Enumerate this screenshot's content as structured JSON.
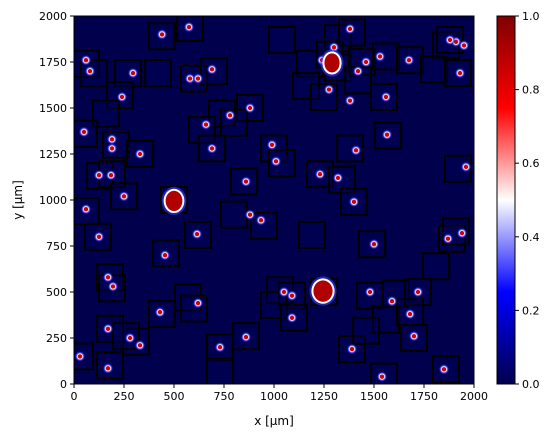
{
  "chart_data": {
    "type": "heatmap",
    "title": "",
    "xlabel": "x [µm]",
    "ylabel": "y [µm]",
    "xlim": [
      0,
      2000
    ],
    "ylim": [
      0,
      2000
    ],
    "x_ticks": [
      0,
      250,
      500,
      750,
      1000,
      1250,
      1500,
      1750,
      2000
    ],
    "y_ticks": [
      0,
      250,
      500,
      750,
      1000,
      1250,
      1500,
      1750,
      2000
    ],
    "background_color": "#00004d",
    "colorbar": {
      "label": "",
      "range": [
        0.0,
        1.0
      ],
      "ticks": [
        "0.0",
        "0.2",
        "0.4",
        "0.6",
        "0.8",
        "1.0"
      ],
      "colormap": "seismic",
      "stops": [
        "#00004d",
        "#0000ff",
        "#ffffff",
        "#ff0000",
        "#800000"
      ]
    },
    "large_blobs": [
      {
        "x": 500,
        "y": 995,
        "rx": 42,
        "ry": 55
      },
      {
        "x": 1245,
        "y": 505,
        "rx": 48,
        "ry": 58
      },
      {
        "x": 1290,
        "y": 1745,
        "rx": 38,
        "ry": 52
      }
    ],
    "particles": [
      [
        440,
        1900
      ],
      [
        575,
        1940
      ],
      [
        1380,
        1930
      ],
      [
        1910,
        1860
      ],
      [
        1950,
        1840
      ],
      [
        60,
        1760
      ],
      [
        80,
        1700
      ],
      [
        240,
        1560
      ],
      [
        295,
        1690
      ],
      [
        580,
        1660
      ],
      [
        620,
        1660
      ],
      [
        690,
        1710
      ],
      [
        1240,
        1760
      ],
      [
        1300,
        1830
      ],
      [
        1460,
        1750
      ],
      [
        1530,
        1780
      ],
      [
        1675,
        1760
      ],
      [
        1880,
        1870
      ],
      [
        1930,
        1690
      ],
      [
        1420,
        1700
      ],
      [
        1560,
        1560
      ],
      [
        1380,
        1540
      ],
      [
        1275,
        1600
      ],
      [
        660,
        1410
      ],
      [
        780,
        1460
      ],
      [
        880,
        1500
      ],
      [
        50,
        1370
      ],
      [
        190,
        1330
      ],
      [
        190,
        1280
      ],
      [
        330,
        1250
      ],
      [
        690,
        1280
      ],
      [
        990,
        1300
      ],
      [
        1010,
        1210
      ],
      [
        1410,
        1270
      ],
      [
        1565,
        1355
      ],
      [
        1960,
        1180
      ],
      [
        125,
        1135
      ],
      [
        185,
        1135
      ],
      [
        860,
        1100
      ],
      [
        1230,
        1140
      ],
      [
        1320,
        1120
      ],
      [
        1400,
        990
      ],
      [
        250,
        1020
      ],
      [
        60,
        950
      ],
      [
        880,
        920
      ],
      [
        935,
        890
      ],
      [
        1870,
        790
      ],
      [
        1940,
        820
      ],
      [
        125,
        800
      ],
      [
        615,
        815
      ],
      [
        1500,
        760
      ],
      [
        455,
        700
      ],
      [
        170,
        580
      ],
      [
        195,
        530
      ],
      [
        1050,
        500
      ],
      [
        1090,
        480
      ],
      [
        1480,
        500
      ],
      [
        1720,
        500
      ],
      [
        620,
        440
      ],
      [
        1590,
        450
      ],
      [
        430,
        390
      ],
      [
        1090,
        360
      ],
      [
        1680,
        380
      ],
      [
        170,
        300
      ],
      [
        280,
        250
      ],
      [
        330,
        210
      ],
      [
        730,
        200
      ],
      [
        860,
        255
      ],
      [
        1390,
        190
      ],
      [
        1700,
        260
      ],
      [
        30,
        150
      ],
      [
        170,
        85
      ],
      [
        1850,
        80
      ],
      [
        1540,
        40
      ]
    ],
    "boxes": [
      [
        440,
        1890
      ],
      [
        580,
        1935
      ],
      [
        1040,
        1870
      ],
      [
        1320,
        1880
      ],
      [
        1390,
        1910
      ],
      [
        1860,
        1840
      ],
      [
        1880,
        1870
      ],
      [
        60,
        1740
      ],
      [
        100,
        1690
      ],
      [
        270,
        1690
      ],
      [
        420,
        1690
      ],
      [
        600,
        1660
      ],
      [
        700,
        1700
      ],
      [
        1180,
        1740
      ],
      [
        1280,
        1790
      ],
      [
        1320,
        1720
      ],
      [
        1440,
        1750
      ],
      [
        1560,
        1780
      ],
      [
        1680,
        1760
      ],
      [
        1800,
        1710
      ],
      [
        1920,
        1690
      ],
      [
        1160,
        1620
      ],
      [
        1420,
        1650
      ],
      [
        230,
        1570
      ],
      [
        160,
        1470
      ],
      [
        740,
        1470
      ],
      [
        880,
        1500
      ],
      [
        640,
        1380
      ],
      [
        800,
        1420
      ],
      [
        1250,
        1560
      ],
      [
        1550,
        1560
      ],
      [
        50,
        1360
      ],
      [
        210,
        1300
      ],
      [
        330,
        1250
      ],
      [
        690,
        1280
      ],
      [
        1000,
        1280
      ],
      [
        1040,
        1200
      ],
      [
        1380,
        1280
      ],
      [
        1570,
        1350
      ],
      [
        130,
        1130
      ],
      [
        190,
        1140
      ],
      [
        250,
        1020
      ],
      [
        850,
        1100
      ],
      [
        1230,
        1140
      ],
      [
        1340,
        1110
      ],
      [
        1400,
        990
      ],
      [
        1920,
        1170
      ],
      [
        60,
        940
      ],
      [
        500,
        1000
      ],
      [
        800,
        920
      ],
      [
        950,
        860
      ],
      [
        1190,
        810
      ],
      [
        120,
        800
      ],
      [
        620,
        810
      ],
      [
        1490,
        760
      ],
      [
        1890,
        790
      ],
      [
        1910,
        830
      ],
      [
        460,
        710
      ],
      [
        180,
        580
      ],
      [
        190,
        520
      ],
      [
        1810,
        640
      ],
      [
        570,
        470
      ],
      [
        1030,
        510
      ],
      [
        1090,
        480
      ],
      [
        1480,
        480
      ],
      [
        1610,
        490
      ],
      [
        1720,
        500
      ],
      [
        600,
        410
      ],
      [
        440,
        380
      ],
      [
        1000,
        430
      ],
      [
        1100,
        360
      ],
      [
        1560,
        350
      ],
      [
        1680,
        390
      ],
      [
        180,
        300
      ],
      [
        310,
        230
      ],
      [
        260,
        260
      ],
      [
        860,
        260
      ],
      [
        1390,
        190
      ],
      [
        1460,
        290
      ],
      [
        1700,
        250
      ],
      [
        730,
        200
      ],
      [
        30,
        150
      ],
      [
        180,
        100
      ],
      [
        730,
        70
      ],
      [
        1550,
        40
      ],
      [
        1860,
        80
      ],
      [
        1250,
        500
      ]
    ]
  }
}
